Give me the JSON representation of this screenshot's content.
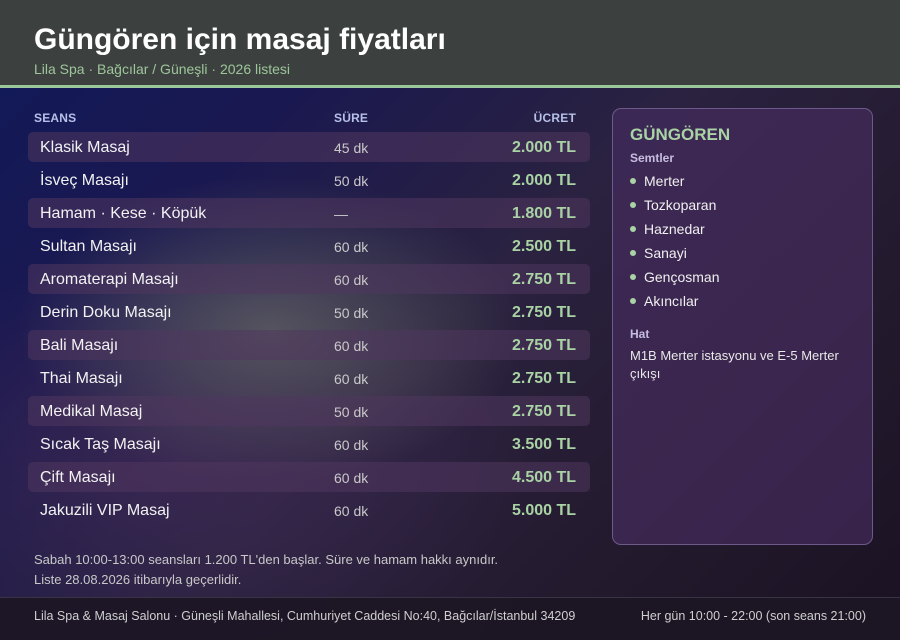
{
  "header": {
    "title": "Güngören için masaj fiyatları",
    "subtitle": "Lila Spa · Bağcılar / Güneşli · 2026 listesi"
  },
  "table": {
    "col_seans": "SEANS",
    "col_sure": "SÜRE",
    "col_ucret": "ÜCRET",
    "rows": [
      {
        "name": "Klasik Masaj",
        "duration": "45 dk",
        "price": "2.000 TL"
      },
      {
        "name": "İsveç Masajı",
        "duration": "50 dk",
        "price": "2.000 TL"
      },
      {
        "name": "Hamam · Kese · Köpük",
        "duration": "—",
        "price": "1.800 TL"
      },
      {
        "name": "Sultan Masajı",
        "duration": "60 dk",
        "price": "2.500 TL"
      },
      {
        "name": "Aromaterapi Masajı",
        "duration": "60 dk",
        "price": "2.750 TL"
      },
      {
        "name": "Derin Doku Masajı",
        "duration": "50 dk",
        "price": "2.750 TL"
      },
      {
        "name": "Bali Masajı",
        "duration": "60 dk",
        "price": "2.750 TL"
      },
      {
        "name": "Thai Masajı",
        "duration": "60 dk",
        "price": "2.750 TL"
      },
      {
        "name": "Medikal Masaj",
        "duration": "50 dk",
        "price": "2.750 TL"
      },
      {
        "name": "Sıcak Taş Masajı",
        "duration": "60 dk",
        "price": "3.500 TL"
      },
      {
        "name": "Çift Masajı",
        "duration": "60 dk",
        "price": "4.500 TL"
      },
      {
        "name": "Jakuzili VIP Masaj",
        "duration": "60 dk",
        "price": "5.000 TL"
      }
    ]
  },
  "note": {
    "line1": "Sabah 10:00-13:00 seansları 1.200 TL'den başlar. Süre ve hamam hakkı aynıdır.",
    "line2": "Liste 28.08.2026 itibarıyla geçerlidir."
  },
  "sidebar": {
    "title": "GÜNGÖREN",
    "districts_label": "Semtler",
    "districts": [
      "Merter",
      "Tozkoparan",
      "Haznedar",
      "Sanayi",
      "Gençosman",
      "Akıncılar"
    ],
    "line_label": "Hat",
    "line_text": "M1B Merter istasyonu ve E-5 Merter çıkışı"
  },
  "footer": {
    "address": "Lila Spa & Masaj Salonu · Güneşli Mahallesi, Cumhuriyet Caddesi No:40, Bağcılar/İstanbul 34209",
    "hours": "Her gün 10:00 - 22:00 (son seans 21:00)"
  },
  "colors": {
    "accent": "#a9d3a4",
    "header_bg": "#3c4140"
  }
}
